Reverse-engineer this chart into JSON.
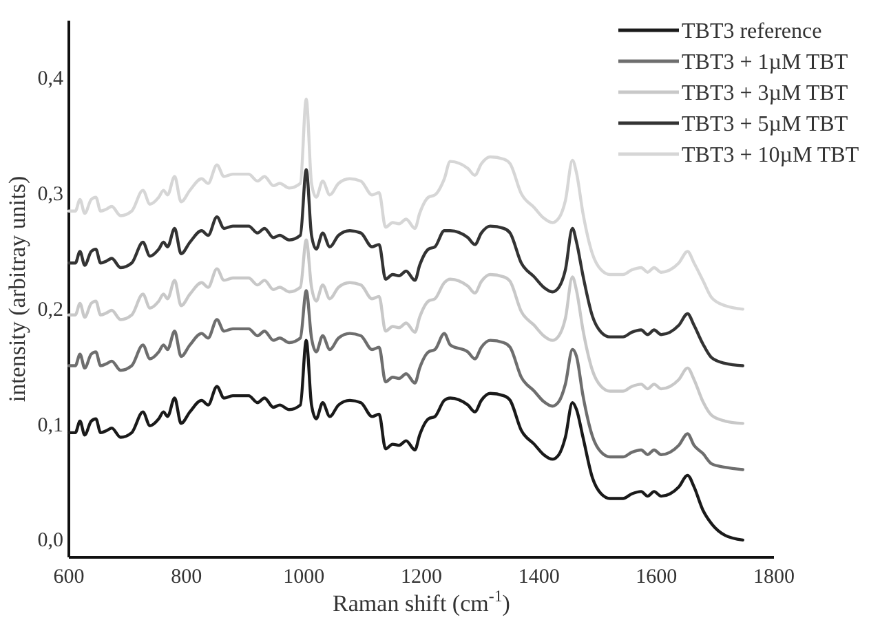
{
  "chart_data": {
    "type": "line",
    "xlabel": "Raman shift (cm$^{-1}$)",
    "ylabel": "intensity (arbitray units)",
    "x": [
      600,
      611,
      619,
      627,
      638,
      646,
      654,
      665,
      673,
      688,
      707,
      726,
      738,
      753,
      761,
      768,
      780,
      791,
      806,
      826,
      837,
      852,
      864,
      879,
      906,
      921,
      933,
      948,
      959,
      975,
      994,
      1004,
      1013,
      1021,
      1032,
      1044,
      1059,
      1078,
      1097,
      1116,
      1128,
      1139,
      1151,
      1162,
      1174,
      1189,
      1197,
      1212,
      1223,
      1239,
      1249,
      1279,
      1291,
      1302,
      1317,
      1340,
      1351,
      1370,
      1392,
      1408,
      1423,
      1434,
      1445,
      1457,
      1464,
      1475,
      1491,
      1506,
      1521,
      1543,
      1558,
      1574,
      1585,
      1596,
      1608,
      1623,
      1638,
      1653,
      1664,
      1679,
      1694,
      1717,
      1747
    ],
    "series": [
      {
        "name": "TBT3 reference",
        "color": "#1a1a1a",
        "values": [
          0.093,
          0.093,
          0.103,
          0.091,
          0.103,
          0.105,
          0.093,
          0.095,
          0.097,
          0.089,
          0.093,
          0.111,
          0.099,
          0.105,
          0.111,
          0.107,
          0.123,
          0.101,
          0.111,
          0.121,
          0.117,
          0.133,
          0.123,
          0.125,
          0.125,
          0.119,
          0.123,
          0.115,
          0.117,
          0.113,
          0.117,
          0.173,
          0.117,
          0.105,
          0.119,
          0.107,
          0.117,
          0.121,
          0.119,
          0.107,
          0.109,
          0.079,
          0.083,
          0.082,
          0.086,
          0.078,
          0.091,
          0.105,
          0.107,
          0.121,
          0.123,
          0.117,
          0.111,
          0.121,
          0.127,
          0.125,
          0.121,
          0.095,
          0.083,
          0.074,
          0.07,
          0.074,
          0.089,
          0.119,
          0.113,
          0.089,
          0.054,
          0.04,
          0.036,
          0.036,
          0.04,
          0.042,
          0.038,
          0.042,
          0.038,
          0.04,
          0.046,
          0.056,
          0.046,
          0.026,
          0.014,
          0.004,
          0.0
        ]
      },
      {
        "name": "TBT3 + 1µM TBT",
        "color": "#6e6e6e",
        "values": [
          0.151,
          0.151,
          0.161,
          0.149,
          0.161,
          0.163,
          0.151,
          0.153,
          0.155,
          0.147,
          0.151,
          0.169,
          0.157,
          0.163,
          0.169,
          0.165,
          0.181,
          0.159,
          0.169,
          0.179,
          0.175,
          0.191,
          0.181,
          0.183,
          0.183,
          0.177,
          0.181,
          0.173,
          0.175,
          0.171,
          0.175,
          0.216,
          0.175,
          0.163,
          0.177,
          0.165,
          0.175,
          0.179,
          0.177,
          0.165,
          0.167,
          0.137,
          0.141,
          0.14,
          0.144,
          0.136,
          0.149,
          0.163,
          0.165,
          0.179,
          0.169,
          0.163,
          0.157,
          0.167,
          0.173,
          0.171,
          0.167,
          0.141,
          0.129,
          0.12,
          0.116,
          0.12,
          0.135,
          0.165,
          0.159,
          0.125,
          0.09,
          0.076,
          0.072,
          0.072,
          0.076,
          0.078,
          0.074,
          0.078,
          0.074,
          0.076,
          0.082,
          0.092,
          0.082,
          0.075,
          0.066,
          0.063,
          0.061
        ]
      },
      {
        "name": "TBT3 + 3µM TBT",
        "color": "#c8c8c8",
        "values": [
          0.195,
          0.195,
          0.205,
          0.193,
          0.205,
          0.207,
          0.195,
          0.197,
          0.199,
          0.191,
          0.195,
          0.213,
          0.201,
          0.207,
          0.213,
          0.209,
          0.225,
          0.203,
          0.213,
          0.223,
          0.219,
          0.235,
          0.225,
          0.227,
          0.227,
          0.221,
          0.225,
          0.217,
          0.219,
          0.215,
          0.219,
          0.26,
          0.219,
          0.207,
          0.221,
          0.209,
          0.219,
          0.223,
          0.221,
          0.209,
          0.211,
          0.181,
          0.185,
          0.184,
          0.188,
          0.18,
          0.193,
          0.207,
          0.209,
          0.223,
          0.226,
          0.22,
          0.214,
          0.224,
          0.23,
          0.228,
          0.224,
          0.198,
          0.186,
          0.177,
          0.173,
          0.177,
          0.192,
          0.228,
          0.216,
          0.182,
          0.147,
          0.133,
          0.129,
          0.129,
          0.133,
          0.135,
          0.131,
          0.135,
          0.131,
          0.133,
          0.139,
          0.149,
          0.139,
          0.12,
          0.108,
          0.103,
          0.101
        ]
      },
      {
        "name": "TBT3 + 5µM TBT",
        "color": "#333333",
        "values": [
          0.24,
          0.24,
          0.25,
          0.238,
          0.25,
          0.252,
          0.24,
          0.242,
          0.244,
          0.236,
          0.24,
          0.258,
          0.246,
          0.252,
          0.258,
          0.254,
          0.27,
          0.248,
          0.258,
          0.268,
          0.264,
          0.28,
          0.27,
          0.272,
          0.272,
          0.266,
          0.27,
          0.262,
          0.264,
          0.26,
          0.264,
          0.321,
          0.264,
          0.252,
          0.266,
          0.254,
          0.264,
          0.268,
          0.266,
          0.254,
          0.256,
          0.226,
          0.23,
          0.229,
          0.233,
          0.225,
          0.238,
          0.252,
          0.254,
          0.268,
          0.268,
          0.262,
          0.256,
          0.266,
          0.272,
          0.27,
          0.266,
          0.24,
          0.228,
          0.219,
          0.215,
          0.219,
          0.234,
          0.27,
          0.258,
          0.229,
          0.194,
          0.18,
          0.176,
          0.176,
          0.18,
          0.182,
          0.178,
          0.182,
          0.178,
          0.18,
          0.186,
          0.196,
          0.186,
          0.17,
          0.158,
          0.153,
          0.151
        ]
      },
      {
        "name": "TBT3 + 10µM TBT",
        "color": "#d6d6d6",
        "values": [
          0.285,
          0.285,
          0.295,
          0.283,
          0.295,
          0.297,
          0.285,
          0.287,
          0.289,
          0.281,
          0.285,
          0.303,
          0.291,
          0.297,
          0.303,
          0.299,
          0.315,
          0.293,
          0.303,
          0.313,
          0.309,
          0.325,
          0.315,
          0.317,
          0.317,
          0.311,
          0.315,
          0.307,
          0.309,
          0.305,
          0.309,
          0.382,
          0.309,
          0.297,
          0.311,
          0.299,
          0.309,
          0.313,
          0.311,
          0.299,
          0.301,
          0.271,
          0.275,
          0.274,
          0.278,
          0.27,
          0.283,
          0.297,
          0.299,
          0.313,
          0.328,
          0.322,
          0.316,
          0.326,
          0.332,
          0.33,
          0.326,
          0.3,
          0.288,
          0.279,
          0.275,
          0.279,
          0.294,
          0.329,
          0.318,
          0.283,
          0.248,
          0.234,
          0.23,
          0.23,
          0.234,
          0.236,
          0.232,
          0.236,
          0.232,
          0.234,
          0.24,
          0.25,
          0.24,
          0.225,
          0.21,
          0.203,
          0.2
        ]
      }
    ],
    "xlim": [
      600,
      1800
    ],
    "xticks": [
      600,
      800,
      1000,
      1200,
      1400,
      1600,
      1800
    ],
    "ylim": [
      -0.015,
      0.45
    ],
    "yticks": [
      {
        "value": 0,
        "label": "0,0"
      },
      {
        "value": 0.1,
        "label": "0,1"
      },
      {
        "value": 0.2,
        "label": "0,2"
      },
      {
        "value": 0.3,
        "label": "0,3"
      },
      {
        "value": 0.4,
        "label": "0,4"
      }
    ],
    "legend": "top right",
    "grid": false,
    "marker": "none",
    "line_style": "solid"
  }
}
